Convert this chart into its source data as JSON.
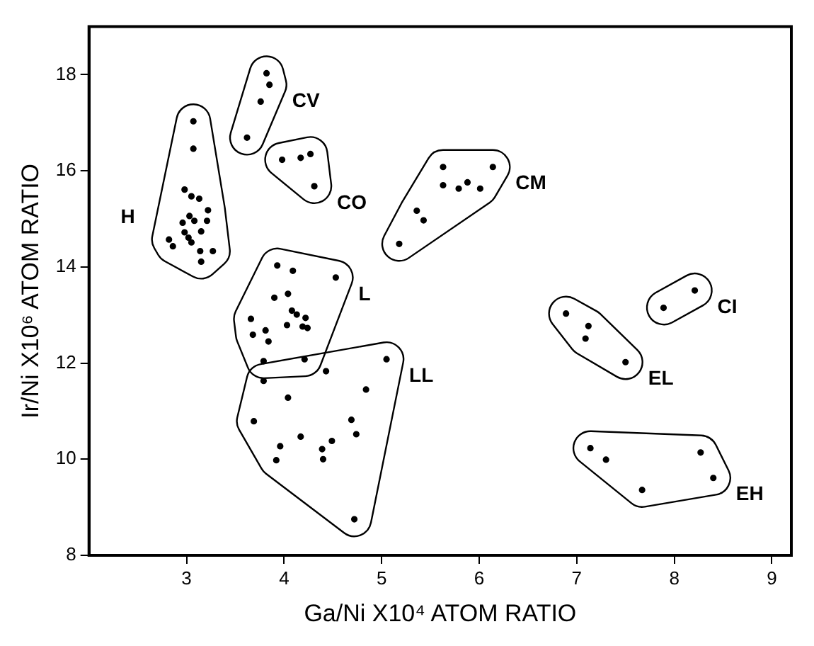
{
  "chart_data": {
    "type": "scatter",
    "xlabel": "Ga/Ni X10⁴ ATOM RATIO",
    "ylabel": "Ir/Ni X10⁶ ATOM RATIO",
    "xlim": [
      2,
      9.2
    ],
    "ylim": [
      8,
      19
    ],
    "xticks": [
      3,
      4,
      5,
      6,
      7,
      8,
      9
    ],
    "yticks": [
      8,
      10,
      12,
      14,
      16,
      18
    ],
    "grid": false,
    "legend": false,
    "marker": "circle",
    "series": [
      {
        "name": "H",
        "color": "#000000",
        "x": [
          3.07,
          3.07,
          2.98,
          3.05,
          3.13,
          3.22,
          3.03,
          2.96,
          3.08,
          3.21,
          3.15,
          2.98,
          3.02,
          3.05,
          2.82,
          2.86,
          3.14,
          3.27,
          3.15
        ],
        "values": [
          17.03,
          16.46,
          15.61,
          15.47,
          15.42,
          15.18,
          15.06,
          14.92,
          14.96,
          14.96,
          14.74,
          14.72,
          14.61,
          14.51,
          14.57,
          14.43,
          14.33,
          14.33,
          14.11
        ]
      },
      {
        "name": "CV",
        "color": "#000000",
        "x": [
          3.82,
          3.85,
          3.76,
          3.62
        ],
        "values": [
          18.03,
          17.79,
          17.44,
          16.69
        ]
      },
      {
        "name": "CO",
        "color": "#000000",
        "x": [
          3.98,
          4.17,
          4.27,
          4.31
        ],
        "values": [
          16.23,
          16.27,
          16.35,
          15.68
        ]
      },
      {
        "name": "CM",
        "color": "#000000",
        "x": [
          5.63,
          6.14,
          5.63,
          5.79,
          5.88,
          6.01,
          5.36,
          5.43,
          5.18
        ],
        "values": [
          16.08,
          16.08,
          15.7,
          15.63,
          15.76,
          15.63,
          15.17,
          14.97,
          14.48
        ]
      },
      {
        "name": "L",
        "color": "#000000",
        "x": [
          3.93,
          4.09,
          4.53,
          3.9,
          4.04,
          4.08,
          4.13,
          4.22,
          3.66,
          4.19,
          4.03,
          4.24,
          3.81,
          3.68,
          3.84,
          3.79,
          4.21
        ],
        "values": [
          14.03,
          13.92,
          13.78,
          13.36,
          13.44,
          13.09,
          13.01,
          12.94,
          12.92,
          12.76,
          12.79,
          12.73,
          12.68,
          12.59,
          12.45,
          12.04,
          12.08
        ]
      },
      {
        "name": "LL",
        "color": "#000000",
        "x": [
          5.05,
          3.79,
          4.43,
          4.84,
          4.04,
          3.69,
          4.69,
          4.74,
          4.17,
          4.49,
          3.96,
          4.39,
          4.4,
          3.92,
          4.72
        ],
        "values": [
          12.08,
          11.63,
          11.83,
          11.45,
          11.28,
          10.79,
          10.82,
          10.52,
          10.47,
          10.38,
          10.27,
          10.21,
          10,
          9.98,
          8.75
        ]
      },
      {
        "name": "CI",
        "color": "#000000",
        "x": [
          7.89,
          8.21
        ],
        "values": [
          13.15,
          13.51
        ]
      },
      {
        "name": "EL",
        "color": "#000000",
        "x": [
          6.89,
          7.12,
          7.09,
          7.5
        ],
        "values": [
          13.03,
          12.77,
          12.51,
          12.02
        ]
      },
      {
        "name": "EH",
        "color": "#000000",
        "x": [
          7.14,
          7.3,
          8.27,
          8.4,
          7.67
        ],
        "values": [
          10.23,
          9.99,
          10.14,
          9.61,
          9.36
        ]
      }
    ]
  }
}
